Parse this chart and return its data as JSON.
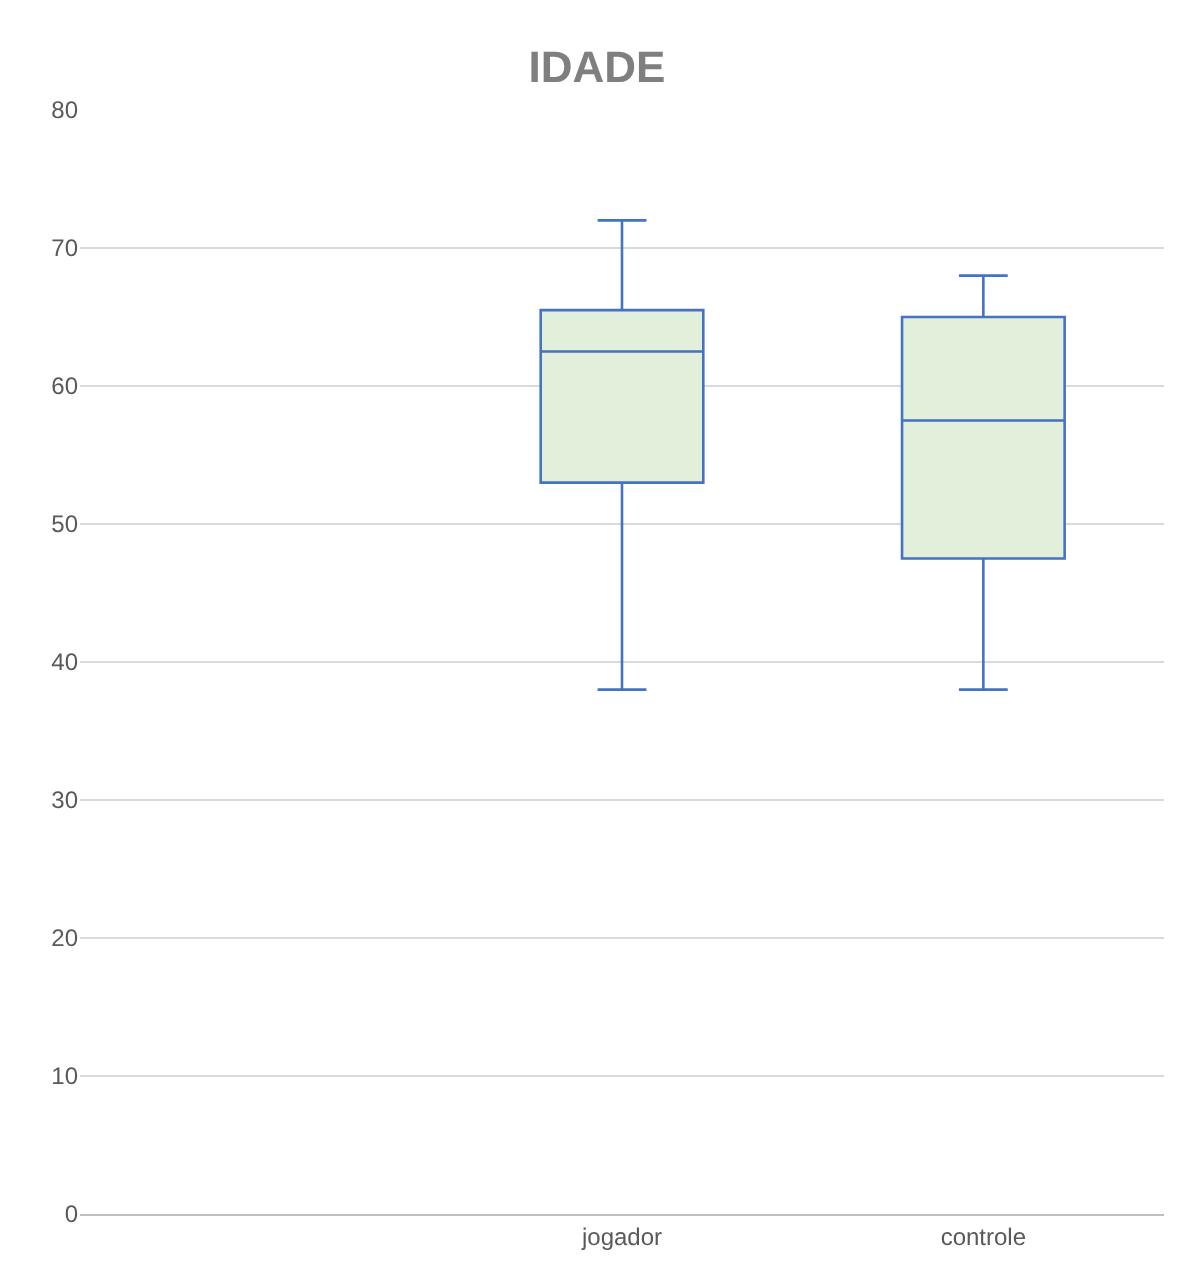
{
  "chart_data": {
    "type": "box",
    "title": "IDADE",
    "categories": [
      null,
      "jogador",
      "controle"
    ],
    "series": [
      {
        "color": "#4472c4",
        "boxes": [
          null,
          {
            "low": 38,
            "q1": 53,
            "median": 62.5,
            "q3": 65.5,
            "high": 72
          },
          {
            "low": 38,
            "q1": 47.5,
            "median": 57.5,
            "q3": 65,
            "high": 68
          }
        ]
      }
    ],
    "ylim": [
      0,
      80
    ],
    "yticks": [
      0,
      10,
      20,
      30,
      40,
      50,
      60,
      70,
      80
    ],
    "grid": "y"
  }
}
